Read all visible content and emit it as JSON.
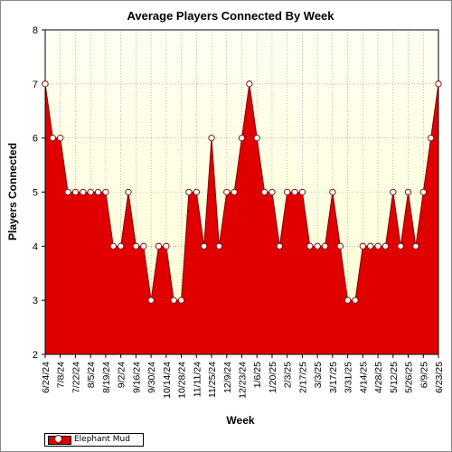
{
  "chart_data": {
    "type": "area",
    "title": "Average Players Connected By Week",
    "xlabel": "Week",
    "ylabel": "Players Connected",
    "ylim": [
      2,
      8
    ],
    "yticks": [
      2,
      3,
      4,
      5,
      6,
      7,
      8
    ],
    "grid": true,
    "legend_position": "bottom-left",
    "x": [
      "6/24/24",
      "7/1/24",
      "7/8/24",
      "7/15/24",
      "7/22/24",
      "7/29/24",
      "8/5/24",
      "8/12/24",
      "8/19/24",
      "8/26/24",
      "9/2/24",
      "9/9/24",
      "9/16/24",
      "9/23/24",
      "9/30/24",
      "10/7/24",
      "10/14/24",
      "10/21/24",
      "10/28/24",
      "11/4/24",
      "11/11/24",
      "11/18/24",
      "11/25/24",
      "12/2/24",
      "12/9/24",
      "12/16/24",
      "12/23/24",
      "12/30/24",
      "1/6/25",
      "1/13/25",
      "1/20/25",
      "1/27/25",
      "2/3/25",
      "2/10/25",
      "2/17/25",
      "2/24/25",
      "3/3/25",
      "3/10/25",
      "3/17/25",
      "3/24/25",
      "3/31/25",
      "4/7/25",
      "4/14/25",
      "4/21/25",
      "4/28/25",
      "5/5/25",
      "5/12/25",
      "5/19/25",
      "5/26/25",
      "6/2/25",
      "6/9/25",
      "6/16/25",
      "6/23/25"
    ],
    "x_tick_labels": [
      "6/24/24",
      "7/8/24",
      "7/22/24",
      "8/5/24",
      "8/19/24",
      "9/2/24",
      "9/16/24",
      "9/30/24",
      "10/14/24",
      "10/28/24",
      "11/11/24",
      "11/25/24",
      "12/9/24",
      "12/23/24",
      "1/6/25",
      "1/20/25",
      "2/3/25",
      "2/17/25",
      "3/3/25",
      "3/17/25",
      "3/31/25",
      "4/14/25",
      "4/28/25",
      "5/12/25",
      "5/26/25",
      "6/9/25",
      "6/23/25"
    ],
    "series": [
      {
        "name": "Elephant Mud",
        "values": [
          7,
          6,
          6,
          5,
          5,
          5,
          5,
          5,
          5,
          4,
          4,
          5,
          4,
          4,
          3,
          4,
          4,
          3,
          3,
          5,
          5,
          4,
          6,
          4,
          5,
          5,
          6,
          7,
          6,
          5,
          5,
          4,
          5,
          5,
          5,
          4,
          4,
          4,
          5,
          4,
          3,
          3,
          4,
          4,
          4,
          4,
          5,
          4,
          5,
          4,
          5,
          6,
          7
        ]
      }
    ],
    "colors": {
      "fill": "#e00000",
      "line": "#800000",
      "marker_fill": "#ffffff",
      "plot_bg_top": "#fffff2",
      "plot_bg_bottom": "#ffffd4",
      "grid": "#999999"
    }
  }
}
